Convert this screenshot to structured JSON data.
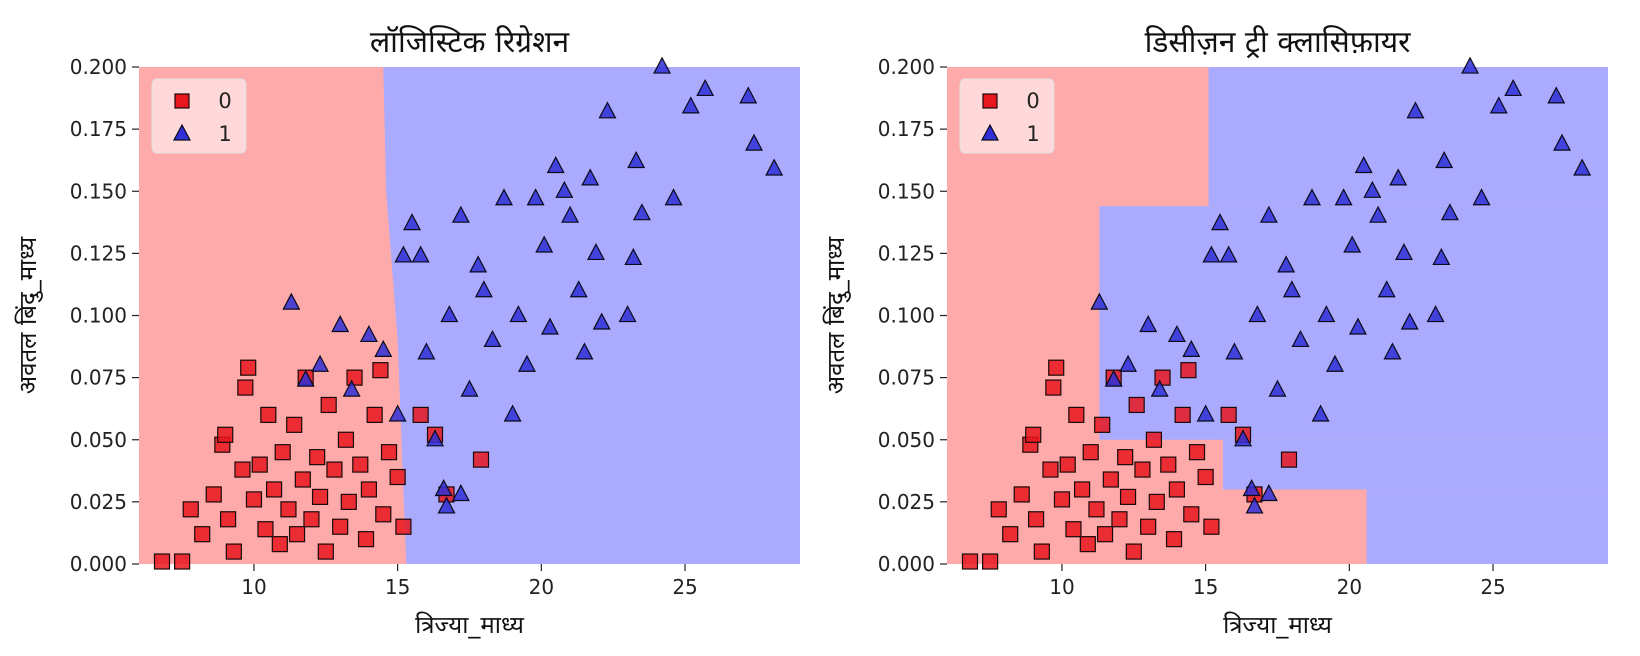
{
  "chart_data": [
    {
      "type": "scatter",
      "title": "लॉजिस्टिक रिग्रेशन",
      "xlabel": "त्रिज्या_माध्य",
      "ylabel": "अवतल बिंदु_माध्य",
      "xlim": [
        6.0,
        29.0
      ],
      "ylim": [
        0.0,
        0.2
      ],
      "x_ticks": [
        "10",
        "15",
        "20",
        "25"
      ],
      "y_ticks": [
        "0.000",
        "0.025",
        "0.050",
        "0.075",
        "0.100",
        "0.125",
        "0.150",
        "0.175",
        "0.200"
      ],
      "grid": false,
      "legend_position": "top-left",
      "colors": {
        "class_0_region": "#ffaaaa",
        "class_1_region": "#aaaaff",
        "class_0_marker": "#e8161e",
        "class_1_marker": "#2f2fd6"
      },
      "decision_boundary": [
        [
          14.5,
          0.2
        ],
        [
          14.6,
          0.15
        ],
        [
          15.0,
          0.09
        ],
        [
          15.3,
          0.0
        ]
      ],
      "series": [
        {
          "name": "0",
          "marker": "square",
          "points": [
            [
              6.8,
              0.001
            ],
            [
              7.5,
              0.001
            ],
            [
              7.8,
              0.022
            ],
            [
              8.2,
              0.012
            ],
            [
              8.6,
              0.028
            ],
            [
              8.9,
              0.048
            ],
            [
              9.0,
              0.052
            ],
            [
              9.1,
              0.018
            ],
            [
              9.3,
              0.005
            ],
            [
              9.6,
              0.038
            ],
            [
              9.7,
              0.071
            ],
            [
              9.8,
              0.079
            ],
            [
              10.0,
              0.026
            ],
            [
              10.2,
              0.04
            ],
            [
              10.4,
              0.014
            ],
            [
              10.5,
              0.06
            ],
            [
              10.7,
              0.03
            ],
            [
              10.9,
              0.008
            ],
            [
              11.0,
              0.045
            ],
            [
              11.2,
              0.022
            ],
            [
              11.4,
              0.056
            ],
            [
              11.5,
              0.012
            ],
            [
              11.7,
              0.034
            ],
            [
              11.8,
              0.075
            ],
            [
              12.0,
              0.018
            ],
            [
              12.2,
              0.043
            ],
            [
              12.3,
              0.027
            ],
            [
              12.5,
              0.005
            ],
            [
              12.6,
              0.064
            ],
            [
              12.8,
              0.038
            ],
            [
              13.0,
              0.015
            ],
            [
              13.2,
              0.05
            ],
            [
              13.3,
              0.025
            ],
            [
              13.5,
              0.075
            ],
            [
              13.7,
              0.04
            ],
            [
              13.9,
              0.01
            ],
            [
              14.0,
              0.03
            ],
            [
              14.2,
              0.06
            ],
            [
              14.4,
              0.078
            ],
            [
              14.5,
              0.02
            ],
            [
              14.7,
              0.045
            ],
            [
              15.0,
              0.035
            ],
            [
              15.2,
              0.015
            ],
            [
              15.8,
              0.06
            ],
            [
              16.3,
              0.052
            ],
            [
              16.7,
              0.028
            ],
            [
              17.9,
              0.042
            ]
          ]
        },
        {
          "name": "1",
          "marker": "triangle",
          "points": [
            [
              11.3,
              0.105
            ],
            [
              11.8,
              0.074
            ],
            [
              12.3,
              0.08
            ],
            [
              13.0,
              0.096
            ],
            [
              13.4,
              0.07
            ],
            [
              14.0,
              0.092
            ],
            [
              14.5,
              0.086
            ],
            [
              15.0,
              0.06
            ],
            [
              15.2,
              0.124
            ],
            [
              15.5,
              0.137
            ],
            [
              15.8,
              0.124
            ],
            [
              16.0,
              0.085
            ],
            [
              16.3,
              0.05
            ],
            [
              16.6,
              0.03
            ],
            [
              16.8,
              0.1
            ],
            [
              17.2,
              0.14
            ],
            [
              17.5,
              0.07
            ],
            [
              17.8,
              0.12
            ],
            [
              18.0,
              0.11
            ],
            [
              18.3,
              0.09
            ],
            [
              18.7,
              0.147
            ],
            [
              19.0,
              0.06
            ],
            [
              19.2,
              0.1
            ],
            [
              19.5,
              0.08
            ],
            [
              19.8,
              0.147
            ],
            [
              20.1,
              0.128
            ],
            [
              20.3,
              0.095
            ],
            [
              20.5,
              0.16
            ],
            [
              20.8,
              0.15
            ],
            [
              21.0,
              0.14
            ],
            [
              21.3,
              0.11
            ],
            [
              21.5,
              0.085
            ],
            [
              21.7,
              0.155
            ],
            [
              21.9,
              0.125
            ],
            [
              22.1,
              0.097
            ],
            [
              22.3,
              0.182
            ],
            [
              23.0,
              0.1
            ],
            [
              23.2,
              0.123
            ],
            [
              23.3,
              0.162
            ],
            [
              23.5,
              0.141
            ],
            [
              24.2,
              0.2
            ],
            [
              24.6,
              0.147
            ],
            [
              25.2,
              0.184
            ],
            [
              25.7,
              0.191
            ],
            [
              27.2,
              0.188
            ],
            [
              27.4,
              0.169
            ],
            [
              28.1,
              0.159
            ],
            [
              16.7,
              0.023
            ],
            [
              17.2,
              0.028
            ]
          ]
        }
      ]
    },
    {
      "type": "scatter",
      "title": "डिसीज़न ट्री क्लासिफ़ायर",
      "xlabel": "त्रिज्या_माध्य",
      "ylabel": "अवतल बिंदु_माध्य",
      "xlim": [
        6.0,
        29.0
      ],
      "ylim": [
        0.0,
        0.2
      ],
      "x_ticks": [
        "10",
        "15",
        "20",
        "25"
      ],
      "y_ticks": [
        "0.000",
        "0.025",
        "0.050",
        "0.075",
        "0.100",
        "0.125",
        "0.150",
        "0.175",
        "0.200"
      ],
      "grid": false,
      "legend_position": "top-left",
      "colors": {
        "class_0_region": "#ffaaaa",
        "class_1_region": "#aaaaff",
        "class_0_marker": "#e8161e",
        "class_1_marker": "#2f2fd6"
      },
      "class_1_regions": [
        [
          15.1,
          29.0,
          0.144,
          0.2
        ],
        [
          11.3,
          29.0,
          0.05,
          0.144
        ],
        [
          15.6,
          29.0,
          0.03,
          0.05
        ],
        [
          20.6,
          29.0,
          0.0,
          0.03
        ]
      ],
      "series": [
        {
          "name": "0",
          "marker": "square",
          "points": [
            [
              6.8,
              0.001
            ],
            [
              7.5,
              0.001
            ],
            [
              7.8,
              0.022
            ],
            [
              8.2,
              0.012
            ],
            [
              8.6,
              0.028
            ],
            [
              8.9,
              0.048
            ],
            [
              9.0,
              0.052
            ],
            [
              9.1,
              0.018
            ],
            [
              9.3,
              0.005
            ],
            [
              9.6,
              0.038
            ],
            [
              9.7,
              0.071
            ],
            [
              9.8,
              0.079
            ],
            [
              10.0,
              0.026
            ],
            [
              10.2,
              0.04
            ],
            [
              10.4,
              0.014
            ],
            [
              10.5,
              0.06
            ],
            [
              10.7,
              0.03
            ],
            [
              10.9,
              0.008
            ],
            [
              11.0,
              0.045
            ],
            [
              11.2,
              0.022
            ],
            [
              11.4,
              0.056
            ],
            [
              11.5,
              0.012
            ],
            [
              11.7,
              0.034
            ],
            [
              11.8,
              0.075
            ],
            [
              12.0,
              0.018
            ],
            [
              12.2,
              0.043
            ],
            [
              12.3,
              0.027
            ],
            [
              12.5,
              0.005
            ],
            [
              12.6,
              0.064
            ],
            [
              12.8,
              0.038
            ],
            [
              13.0,
              0.015
            ],
            [
              13.2,
              0.05
            ],
            [
              13.3,
              0.025
            ],
            [
              13.5,
              0.075
            ],
            [
              13.7,
              0.04
            ],
            [
              13.9,
              0.01
            ],
            [
              14.0,
              0.03
            ],
            [
              14.2,
              0.06
            ],
            [
              14.4,
              0.078
            ],
            [
              14.5,
              0.02
            ],
            [
              14.7,
              0.045
            ],
            [
              15.0,
              0.035
            ],
            [
              15.2,
              0.015
            ],
            [
              15.8,
              0.06
            ],
            [
              16.3,
              0.052
            ],
            [
              16.7,
              0.028
            ],
            [
              17.9,
              0.042
            ]
          ]
        },
        {
          "name": "1",
          "marker": "triangle",
          "points": [
            [
              11.3,
              0.105
            ],
            [
              11.8,
              0.074
            ],
            [
              12.3,
              0.08
            ],
            [
              13.0,
              0.096
            ],
            [
              13.4,
              0.07
            ],
            [
              14.0,
              0.092
            ],
            [
              14.5,
              0.086
            ],
            [
              15.0,
              0.06
            ],
            [
              15.2,
              0.124
            ],
            [
              15.5,
              0.137
            ],
            [
              15.8,
              0.124
            ],
            [
              16.0,
              0.085
            ],
            [
              16.3,
              0.05
            ],
            [
              16.6,
              0.03
            ],
            [
              16.8,
              0.1
            ],
            [
              17.2,
              0.14
            ],
            [
              17.5,
              0.07
            ],
            [
              17.8,
              0.12
            ],
            [
              18.0,
              0.11
            ],
            [
              18.3,
              0.09
            ],
            [
              18.7,
              0.147
            ],
            [
              19.0,
              0.06
            ],
            [
              19.2,
              0.1
            ],
            [
              19.5,
              0.08
            ],
            [
              19.8,
              0.147
            ],
            [
              20.1,
              0.128
            ],
            [
              20.3,
              0.095
            ],
            [
              20.5,
              0.16
            ],
            [
              20.8,
              0.15
            ],
            [
              21.0,
              0.14
            ],
            [
              21.3,
              0.11
            ],
            [
              21.5,
              0.085
            ],
            [
              21.7,
              0.155
            ],
            [
              21.9,
              0.125
            ],
            [
              22.1,
              0.097
            ],
            [
              22.3,
              0.182
            ],
            [
              23.0,
              0.1
            ],
            [
              23.2,
              0.123
            ],
            [
              23.3,
              0.162
            ],
            [
              23.5,
              0.141
            ],
            [
              24.2,
              0.2
            ],
            [
              24.6,
              0.147
            ],
            [
              25.2,
              0.184
            ],
            [
              25.7,
              0.191
            ],
            [
              27.2,
              0.188
            ],
            [
              27.4,
              0.169
            ],
            [
              28.1,
              0.159
            ],
            [
              16.7,
              0.023
            ],
            [
              17.2,
              0.028
            ]
          ]
        }
      ]
    }
  ]
}
